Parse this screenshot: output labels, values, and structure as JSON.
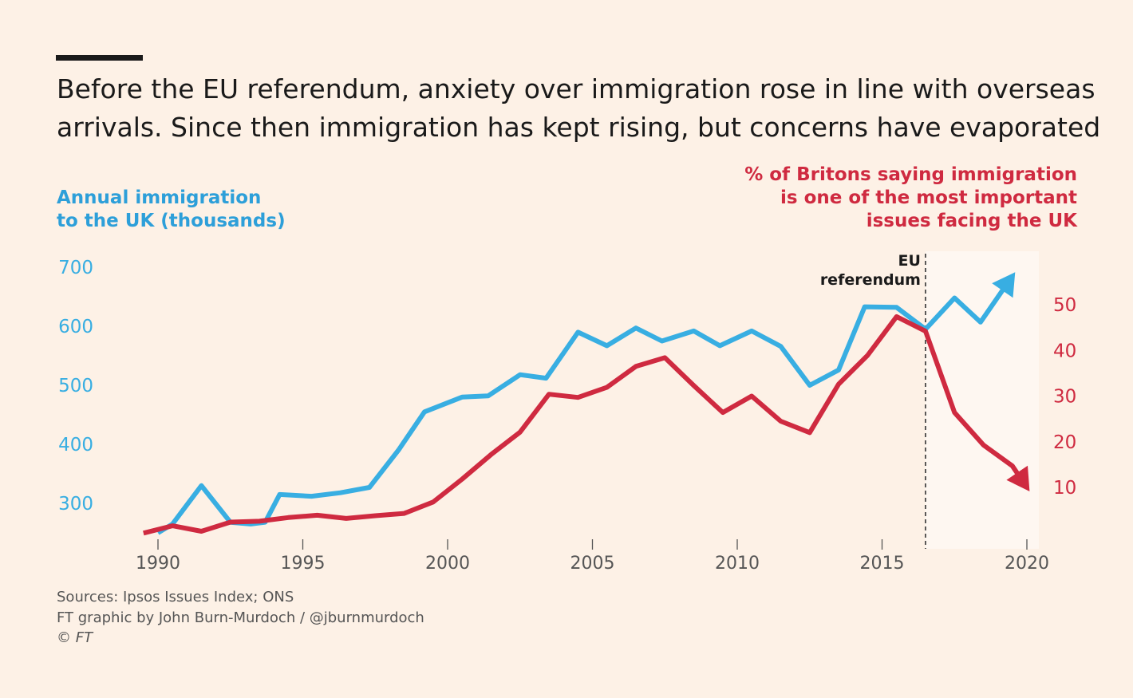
{
  "headline": {
    "line1": "Before the EU referendum, anxiety over immigration rose in line with overseas",
    "line2": "arrivals. Since then immigration has kept rising, but concerns have evaporated"
  },
  "colors": {
    "immigration": "#38aee2",
    "concern": "#cf2a40",
    "background": "#fdf1e6"
  },
  "chart_data": {
    "type": "line",
    "title": "Before the EU referendum, anxiety over immigration rose in line with overseas arrivals. Since then immigration has kept rising, but concerns have evaporated",
    "left_axis_label": [
      "Annual immigration",
      "to the UK (thousands)"
    ],
    "right_axis_label": [
      "% of Britons saying immigration",
      "is one of the most important",
      "issues facing the UK"
    ],
    "x_ticks": [
      1990,
      1995,
      2000,
      2005,
      2010,
      2015,
      2020
    ],
    "xlim": [
      1989.4,
      2020.6
    ],
    "y_left_ticks": [
      300,
      400,
      500,
      600,
      700
    ],
    "y_left_lim": [
      240,
      740
    ],
    "y_right_ticks": [
      10,
      20,
      30,
      40,
      50
    ],
    "y_right_lim": [
      -1.9,
      58.1
    ],
    "annotation": {
      "label_line1": "EU",
      "label_line2": "referendum",
      "x": 2016.5
    },
    "series": [
      {
        "name": "Annual immigration to the UK (thousands)",
        "axis": "left",
        "x": [
          1990,
          1990.5,
          1991.5,
          1992.5,
          1993.2,
          1993.7,
          1994.2,
          1995.3,
          1996.3,
          1997.3,
          1998.3,
          1999.2,
          2000.5,
          2001.4,
          2002.5,
          2003.4,
          2004.5,
          2005.5,
          2006.5,
          2007.4,
          2008.5,
          2009.4,
          2010.5,
          2011.5,
          2012.5,
          2013.5,
          2014.4,
          2015.5,
          2016.5,
          2017.5,
          2018.4,
          2019.5
        ],
        "y": [
          250,
          265,
          330,
          268,
          265,
          268,
          315,
          312,
          318,
          327,
          390,
          455,
          480,
          482,
          518,
          512,
          590,
          567,
          597,
          575,
          592,
          567,
          592,
          566,
          500,
          526,
          633,
          632,
          595,
          648,
          607,
          685
        ]
      },
      {
        "name": "% of Britons saying immigration is one of the most important issues facing the UK",
        "axis": "right",
        "x": [
          1989.5,
          1990.5,
          1991.5,
          1992.5,
          1993.5,
          1994.5,
          1995.5,
          1996.5,
          1997.5,
          1998.5,
          1999.5,
          2000.5,
          2001.5,
          2002.5,
          2003.5,
          2004.5,
          2005.5,
          2006.5,
          2007.5,
          2008.5,
          2009.5,
          2010.5,
          2011.5,
          2012.5,
          2013.5,
          2014.5,
          2015.5,
          2016.5,
          2017.5,
          2018.5,
          2019.5,
          2020.0
        ],
        "y": [
          0,
          1.6,
          0.4,
          2.4,
          2.6,
          3.4,
          3.9,
          3.2,
          3.8,
          4.3,
          6.8,
          11.8,
          17.2,
          22.1,
          30.4,
          29.7,
          31.9,
          36.5,
          38.4,
          32.3,
          26.4,
          30,
          24.5,
          22,
          32.6,
          38.9,
          47.4,
          44.2,
          26.4,
          19.3,
          14.7,
          10
        ]
      }
    ]
  },
  "footer": {
    "sources": "Sources: Ipsos Issues Index; ONS",
    "credit": "FT graphic by John Burn-Murdoch / @jburnmurdoch",
    "copyright": "© FT"
  }
}
